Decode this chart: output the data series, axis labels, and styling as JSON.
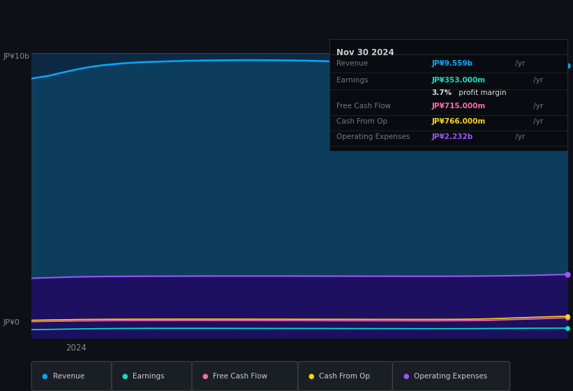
{
  "bg_color": "#0d1117",
  "chart_bg": "#0d2a45",
  "title_date": "Nov 30 2024",
  "info_box_bg": "#080c10",
  "info_box_border": "#2a2a2a",
  "x_label": "2024",
  "y_top_label": "JP¥10b",
  "y_bottom_label": "JP¥0",
  "ylim": [
    0,
    10000000000
  ],
  "revenue_fill_color": "#0d3d5c",
  "revenue_line_color": "#00aaff",
  "op_exp_fill_color": "#1e1060",
  "op_exp_line_color": "#9955ff",
  "earnings_line_color": "#00e5cc",
  "fcf_line_color": "#ff69b4",
  "cashfromop_line_color": "#ffd700",
  "legend_items": [
    {
      "label": "Revenue",
      "color": "#00aaff"
    },
    {
      "label": "Earnings",
      "color": "#00e5cc"
    },
    {
      "label": "Free Cash Flow",
      "color": "#ff69b4"
    },
    {
      "label": "Cash From Op",
      "color": "#ffd700"
    },
    {
      "label": "Operating Expenses",
      "color": "#9955ff"
    }
  ],
  "n_points": 60,
  "revenue_values": [
    9100000000,
    9150000000,
    9200000000,
    9280000000,
    9350000000,
    9420000000,
    9480000000,
    9530000000,
    9570000000,
    9600000000,
    9630000000,
    9650000000,
    9670000000,
    9680000000,
    9690000000,
    9700000000,
    9710000000,
    9720000000,
    9725000000,
    9730000000,
    9735000000,
    9738000000,
    9740000000,
    9742000000,
    9743000000,
    9742000000,
    9740000000,
    9738000000,
    9735000000,
    9730000000,
    9725000000,
    9718000000,
    9710000000,
    9700000000,
    9690000000,
    9680000000,
    9670000000,
    9660000000,
    9650000000,
    9640000000,
    9630000000,
    9620000000,
    9615000000,
    9612000000,
    9610000000,
    9612000000,
    9615000000,
    9620000000,
    9630000000,
    9640000000,
    9655000000,
    9670000000,
    9690000000,
    9710000000,
    9730000000,
    9750000000,
    9770000000,
    9800000000,
    9840000000,
    9559000000
  ],
  "op_exp_values": [
    2100000000,
    2110000000,
    2120000000,
    2130000000,
    2140000000,
    2148000000,
    2154000000,
    2158000000,
    2162000000,
    2165000000,
    2167000000,
    2169000000,
    2170000000,
    2171000000,
    2172000000,
    2173000000,
    2174000000,
    2175000000,
    2176000000,
    2177000000,
    2177000000,
    2178000000,
    2178000000,
    2178000000,
    2178000000,
    2178000000,
    2178000000,
    2178000000,
    2177000000,
    2177000000,
    2176000000,
    2176000000,
    2175000000,
    2175000000,
    2174000000,
    2173000000,
    2173000000,
    2172000000,
    2172000000,
    2171000000,
    2171000000,
    2170000000,
    2170000000,
    2170000000,
    2170000000,
    2170000000,
    2171000000,
    2172000000,
    2174000000,
    2176000000,
    2179000000,
    2182000000,
    2186000000,
    2190000000,
    2196000000,
    2202000000,
    2210000000,
    2218000000,
    2226000000,
    2232000000
  ],
  "earnings_values": [
    300000000,
    305000000,
    310000000,
    315000000,
    320000000,
    325000000,
    330000000,
    334000000,
    337000000,
    340000000,
    342000000,
    344000000,
    345000000,
    346000000,
    347000000,
    347000000,
    347000000,
    347000000,
    347000000,
    347000000,
    347000000,
    346000000,
    346000000,
    345000000,
    345000000,
    344000000,
    344000000,
    343000000,
    343000000,
    342000000,
    342000000,
    341000000,
    341000000,
    340000000,
    340000000,
    339000000,
    339000000,
    338000000,
    338000000,
    337000000,
    337000000,
    336000000,
    336000000,
    335000000,
    335000000,
    335000000,
    335000000,
    336000000,
    337000000,
    338000000,
    340000000,
    342000000,
    344000000,
    346000000,
    348000000,
    350000000,
    351000000,
    352000000,
    353000000,
    353000000
  ],
  "fcf_values": [
    580000000,
    585000000,
    590000000,
    595000000,
    600000000,
    605000000,
    608000000,
    611000000,
    613000000,
    615000000,
    616000000,
    617000000,
    618000000,
    618000000,
    619000000,
    619000000,
    620000000,
    620000000,
    620000000,
    620000000,
    620000000,
    620000000,
    620000000,
    619000000,
    619000000,
    618000000,
    618000000,
    617000000,
    617000000,
    616000000,
    616000000,
    615000000,
    615000000,
    614000000,
    614000000,
    613000000,
    613000000,
    612000000,
    612000000,
    611000000,
    611000000,
    610000000,
    610000000,
    610000000,
    610000000,
    611000000,
    612000000,
    614000000,
    616000000,
    620000000,
    625000000,
    633000000,
    643000000,
    654000000,
    664000000,
    673000000,
    682000000,
    695000000,
    707000000,
    715000000
  ],
  "cashfromop_values": [
    630000000,
    635000000,
    640000000,
    645000000,
    650000000,
    655000000,
    658000000,
    661000000,
    663000000,
    665000000,
    666000000,
    667000000,
    668000000,
    668000000,
    669000000,
    669000000,
    670000000,
    670000000,
    670000000,
    670000000,
    670000000,
    670000000,
    670000000,
    669000000,
    669000000,
    668000000,
    668000000,
    667000000,
    667000000,
    666000000,
    666000000,
    665000000,
    665000000,
    664000000,
    664000000,
    663000000,
    663000000,
    662000000,
    662000000,
    661000000,
    661000000,
    660000000,
    660000000,
    660000000,
    660000000,
    661000000,
    662000000,
    664000000,
    667000000,
    672000000,
    678000000,
    687000000,
    698000000,
    710000000,
    720000000,
    731000000,
    742000000,
    752000000,
    760000000,
    766000000
  ]
}
